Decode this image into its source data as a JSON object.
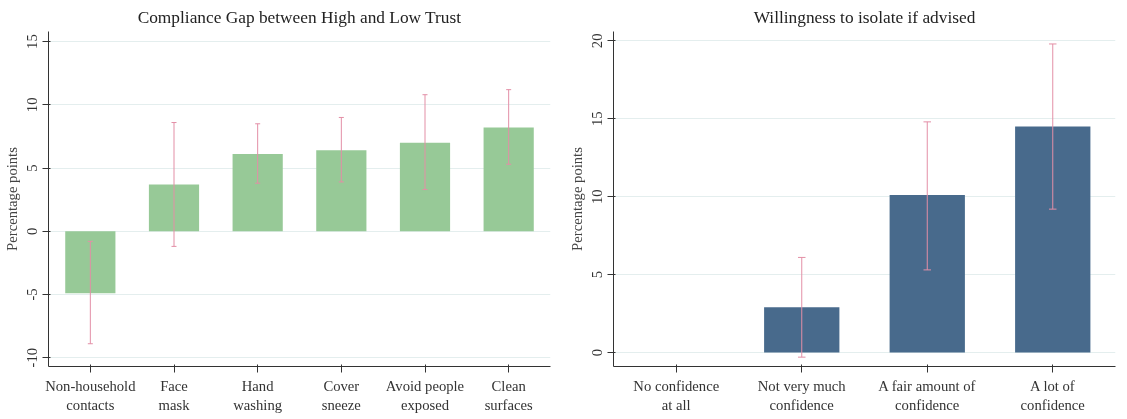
{
  "chart_data": [
    {
      "type": "bar",
      "title": "Compliance Gap between High and Low Trust",
      "ylabel": "Percentage points",
      "categories": [
        "Non-household\ncontacts",
        "Face\nmask",
        "Hand\nwashing",
        "Cover\nsneeze",
        "Avoid people\nexposed",
        "Clean\nsurfaces"
      ],
      "values": [
        -4.9,
        3.7,
        6.1,
        6.4,
        7.0,
        8.2
      ],
      "errors": [
        [
          -8.9,
          -0.8
        ],
        [
          -1.2,
          8.6
        ],
        [
          3.8,
          8.5
        ],
        [
          3.9,
          9.0
        ],
        [
          3.3,
          10.8
        ],
        [
          5.3,
          11.2
        ]
      ],
      "color": "#97c997",
      "ylim": [
        -10.7,
        15.8
      ],
      "yticks": [
        -10,
        -5,
        0,
        5,
        10,
        15
      ],
      "grid": "y"
    },
    {
      "type": "bar",
      "title": "Willingness to isolate if advised",
      "ylabel": "Percentage points",
      "categories": [
        "No confidence\nat all",
        "Not very much\nconfidence",
        "A fair amount of\nconfidence",
        "A lot of\nconfidence"
      ],
      "values": [
        null,
        2.9,
        10.1,
        14.5
      ],
      "errors": [
        null,
        [
          -0.3,
          6.1
        ],
        [
          5.3,
          14.8
        ],
        [
          9.2,
          19.8
        ]
      ],
      "color": "#486a8c",
      "ylim": [
        -0.9,
        20.6
      ],
      "yticks": [
        0,
        5,
        10,
        15,
        20
      ],
      "grid": "y"
    }
  ]
}
